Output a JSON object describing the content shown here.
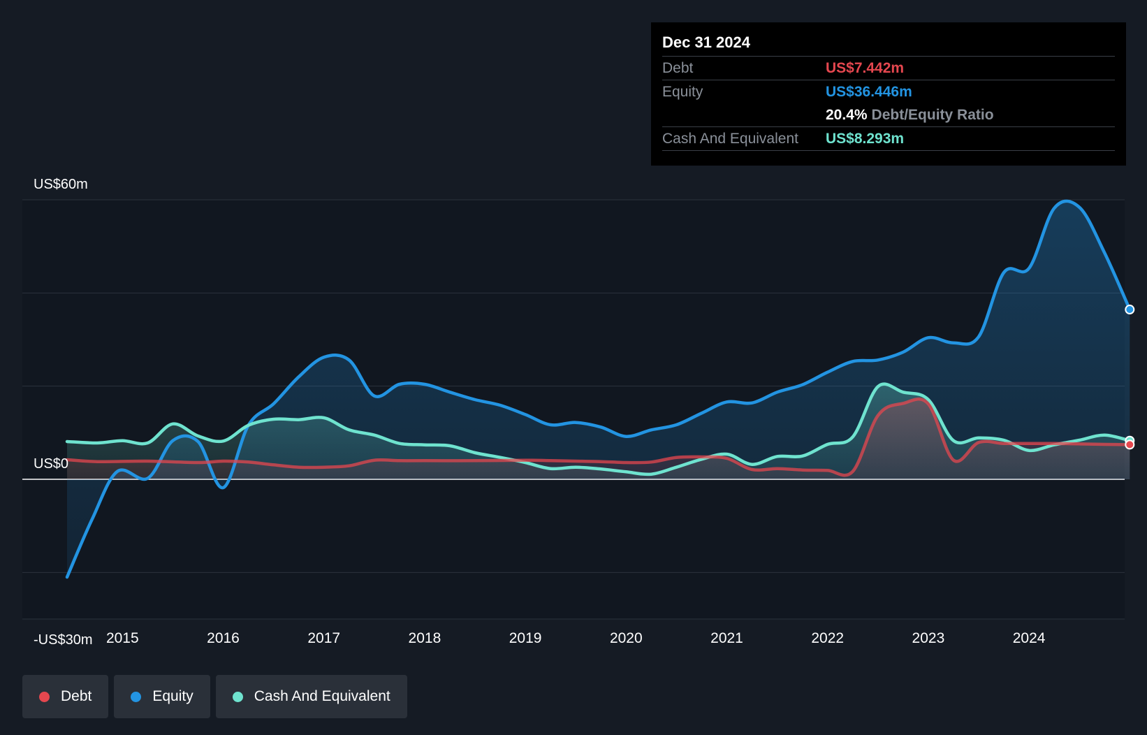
{
  "tooltip": {
    "date": "Dec 31 2024",
    "debt_label": "Debt",
    "debt_value": "US$7.442m",
    "equity_label": "Equity",
    "equity_value": "US$36.446m",
    "ratio_value": "20.4%",
    "ratio_label": "Debt/Equity Ratio",
    "cash_label": "Cash And Equivalent",
    "cash_value": "US$8.293m"
  },
  "legend": [
    {
      "label": "Debt",
      "color": "#e5474f"
    },
    {
      "label": "Equity",
      "color": "#2394e2"
    },
    {
      "label": "Cash And Equivalent",
      "color": "#6fe3cf"
    }
  ],
  "chart_data": {
    "type": "line",
    "ylim": [
      -30,
      60
    ],
    "y_tick_labels": [
      {
        "value": 60,
        "label": "US$60m"
      },
      {
        "value": 0,
        "label": "US$0"
      },
      {
        "value": -30,
        "label": "-US$30m"
      }
    ],
    "gridlines": [
      60,
      40,
      20,
      0,
      -20
    ],
    "x_ticks": [
      "2015",
      "2016",
      "2017",
      "2018",
      "2019",
      "2020",
      "2021",
      "2022",
      "2023",
      "2024"
    ],
    "xlim": [
      2014.45,
      2025.0
    ],
    "series": [
      {
        "name": "Debt",
        "color": "#e5474f",
        "points": [
          [
            2014.45,
            4.2
          ],
          [
            2014.75,
            3.8
          ],
          [
            2015.25,
            3.9
          ],
          [
            2015.75,
            3.6
          ],
          [
            2016.0,
            3.9
          ],
          [
            2016.25,
            3.7
          ],
          [
            2016.5,
            3.1
          ],
          [
            2016.75,
            2.6
          ],
          [
            2017.0,
            2.6
          ],
          [
            2017.25,
            2.9
          ],
          [
            2017.5,
            4.1
          ],
          [
            2017.75,
            4.0
          ],
          [
            2018.0,
            4.0
          ],
          [
            2018.5,
            4.0
          ],
          [
            2019.0,
            4.1
          ],
          [
            2019.25,
            4.0
          ],
          [
            2019.5,
            3.9
          ],
          [
            2019.75,
            3.8
          ],
          [
            2020.0,
            3.6
          ],
          [
            2020.25,
            3.7
          ],
          [
            2020.5,
            4.7
          ],
          [
            2020.75,
            4.8
          ],
          [
            2021.0,
            4.5
          ],
          [
            2021.25,
            2.1
          ],
          [
            2021.5,
            2.3
          ],
          [
            2021.75,
            2.0
          ],
          [
            2022.0,
            1.9
          ],
          [
            2022.25,
            1.7
          ],
          [
            2022.5,
            13.7
          ],
          [
            2022.75,
            16.3
          ],
          [
            2023.0,
            16.2
          ],
          [
            2023.25,
            4.1
          ],
          [
            2023.5,
            7.9
          ],
          [
            2023.75,
            7.7
          ],
          [
            2024.0,
            7.7
          ],
          [
            2024.25,
            7.7
          ],
          [
            2024.5,
            7.6
          ],
          [
            2024.75,
            7.5
          ],
          [
            2025.0,
            7.442
          ]
        ]
      },
      {
        "name": "Equity",
        "color": "#2394e2",
        "points": [
          [
            2014.45,
            -21.0
          ],
          [
            2014.7,
            -8.5
          ],
          [
            2014.95,
            1.7
          ],
          [
            2015.25,
            0.2
          ],
          [
            2015.5,
            8.3
          ],
          [
            2015.75,
            8.1
          ],
          [
            2016.0,
            -1.8
          ],
          [
            2016.25,
            11.6
          ],
          [
            2016.5,
            16.2
          ],
          [
            2016.75,
            22.0
          ],
          [
            2017.0,
            26.2
          ],
          [
            2017.25,
            25.6
          ],
          [
            2017.5,
            17.9
          ],
          [
            2017.75,
            20.4
          ],
          [
            2018.0,
            20.4
          ],
          [
            2018.25,
            18.7
          ],
          [
            2018.5,
            17.1
          ],
          [
            2018.75,
            15.9
          ],
          [
            2019.0,
            13.9
          ],
          [
            2019.25,
            11.7
          ],
          [
            2019.5,
            12.2
          ],
          [
            2019.75,
            11.2
          ],
          [
            2020.0,
            9.2
          ],
          [
            2020.25,
            10.6
          ],
          [
            2020.5,
            11.7
          ],
          [
            2020.75,
            14.2
          ],
          [
            2021.0,
            16.6
          ],
          [
            2021.25,
            16.4
          ],
          [
            2021.5,
            18.7
          ],
          [
            2021.75,
            20.3
          ],
          [
            2022.0,
            23.0
          ],
          [
            2022.25,
            25.3
          ],
          [
            2022.5,
            25.6
          ],
          [
            2022.75,
            27.3
          ],
          [
            2023.0,
            30.4
          ],
          [
            2023.25,
            29.3
          ],
          [
            2023.5,
            30.6
          ],
          [
            2023.75,
            44.4
          ],
          [
            2024.0,
            45.3
          ],
          [
            2024.25,
            58.2
          ],
          [
            2024.5,
            58.4
          ],
          [
            2024.75,
            48.6
          ],
          [
            2025.0,
            36.446
          ]
        ]
      },
      {
        "name": "Cash And Equivalent",
        "color": "#6fe3cf",
        "points": [
          [
            2014.45,
            8.1
          ],
          [
            2014.75,
            7.8
          ],
          [
            2015.0,
            8.3
          ],
          [
            2015.25,
            7.8
          ],
          [
            2015.5,
            11.9
          ],
          [
            2015.75,
            9.3
          ],
          [
            2016.0,
            8.2
          ],
          [
            2016.25,
            11.6
          ],
          [
            2016.5,
            12.9
          ],
          [
            2016.75,
            12.8
          ],
          [
            2017.0,
            13.2
          ],
          [
            2017.25,
            10.6
          ],
          [
            2017.5,
            9.5
          ],
          [
            2017.75,
            7.7
          ],
          [
            2018.0,
            7.4
          ],
          [
            2018.25,
            7.2
          ],
          [
            2018.5,
            5.7
          ],
          [
            2018.75,
            4.7
          ],
          [
            2019.0,
            3.6
          ],
          [
            2019.25,
            2.3
          ],
          [
            2019.5,
            2.6
          ],
          [
            2019.75,
            2.2
          ],
          [
            2020.0,
            1.6
          ],
          [
            2020.25,
            1.1
          ],
          [
            2020.5,
            2.6
          ],
          [
            2020.75,
            4.3
          ],
          [
            2021.0,
            5.4
          ],
          [
            2021.25,
            3.2
          ],
          [
            2021.5,
            4.9
          ],
          [
            2021.75,
            5.0
          ],
          [
            2022.0,
            7.5
          ],
          [
            2022.25,
            9.1
          ],
          [
            2022.5,
            19.9
          ],
          [
            2022.75,
            18.7
          ],
          [
            2023.0,
            17.1
          ],
          [
            2023.25,
            8.3
          ],
          [
            2023.5,
            8.9
          ],
          [
            2023.75,
            8.4
          ],
          [
            2024.0,
            6.2
          ],
          [
            2024.25,
            7.4
          ],
          [
            2024.5,
            8.4
          ],
          [
            2024.75,
            9.5
          ],
          [
            2025.0,
            8.293
          ]
        ]
      }
    ]
  }
}
